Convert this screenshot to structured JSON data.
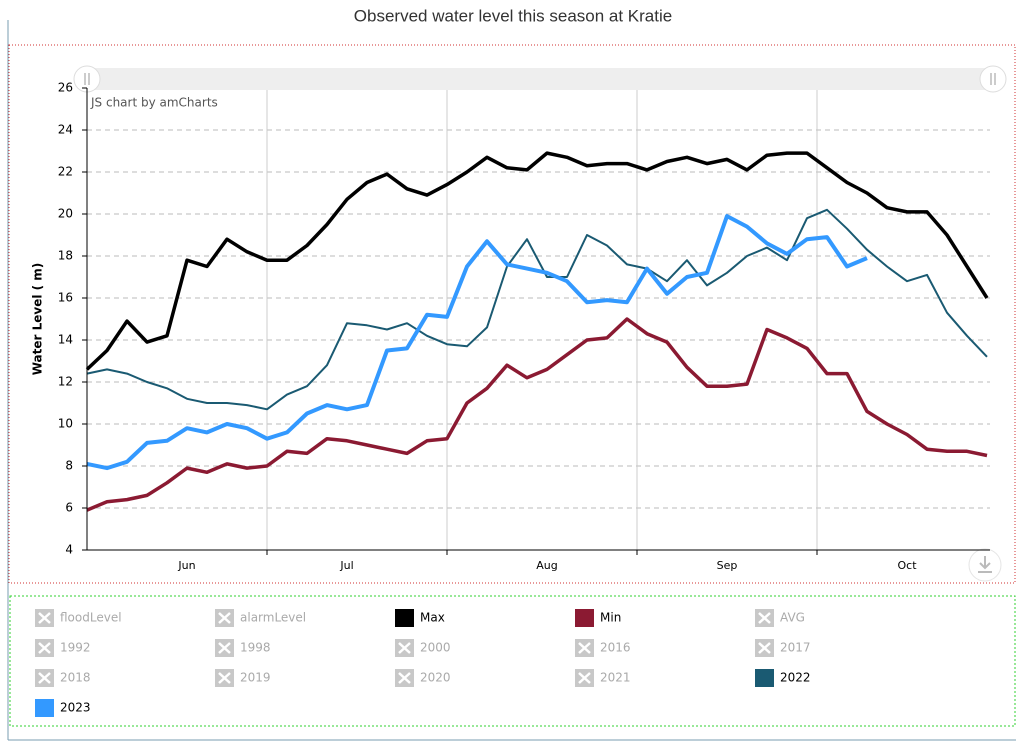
{
  "chart_data": {
    "type": "line",
    "title": "Observed water level this season at Kratie",
    "credit": "JS chart by amCharts",
    "y_label": "Water Level ( m)",
    "ylim": [
      4,
      26
    ],
    "yticks": [
      4,
      6,
      8,
      10,
      12,
      14,
      16,
      18,
      20,
      22,
      24,
      26
    ],
    "grid": true,
    "categories": [
      null,
      null,
      null,
      null,
      null,
      "Jun",
      null,
      null,
      null,
      null,
      null,
      null,
      null,
      "Jul",
      null,
      null,
      null,
      null,
      null,
      null,
      null,
      null,
      null,
      "Aug",
      null,
      null,
      null,
      null,
      null,
      null,
      null,
      null,
      "Sep",
      null,
      null,
      null,
      null,
      null,
      null,
      null,
      null,
      "Oct",
      null,
      null,
      null,
      null
    ],
    "series": [
      {
        "name": "floodLevel",
        "hidden": true
      },
      {
        "name": "alarmLevel",
        "hidden": true
      },
      {
        "name": "Max",
        "color": "#000000",
        "values": [
          12.6,
          13.5,
          14.9,
          13.9,
          14.2,
          17.8,
          17.5,
          18.8,
          18.2,
          17.8,
          17.8,
          18.5,
          19.5,
          20.7,
          21.5,
          21.9,
          21.2,
          20.9,
          21.4,
          22.0,
          22.7,
          22.2,
          22.1,
          22.9,
          22.7,
          22.3,
          22.4,
          22.4,
          22.1,
          22.5,
          22.7,
          22.4,
          22.6,
          22.1,
          22.8,
          22.9,
          22.9,
          22.2,
          21.5,
          21.0,
          20.3,
          20.1,
          20.1,
          19.0,
          17.5,
          16.0
        ]
      },
      {
        "name": "Min",
        "color": "#8b1a32",
        "values": [
          5.9,
          6.3,
          6.4,
          6.6,
          7.2,
          7.9,
          7.7,
          8.1,
          7.9,
          8.0,
          8.7,
          8.6,
          9.3,
          9.2,
          9.0,
          8.8,
          8.6,
          9.2,
          9.3,
          11.0,
          11.7,
          12.8,
          12.2,
          12.6,
          13.3,
          14.0,
          14.1,
          15.0,
          14.3,
          13.9,
          12.7,
          11.8,
          11.8,
          11.9,
          14.5,
          14.1,
          13.6,
          12.4,
          12.4,
          10.6,
          10.0,
          9.5,
          8.8,
          8.7,
          8.7,
          8.5
        ]
      },
      {
        "name": "AVG",
        "hidden": true
      },
      {
        "name": "1992",
        "hidden": true
      },
      {
        "name": "1998",
        "hidden": true
      },
      {
        "name": "2000",
        "hidden": true
      },
      {
        "name": "2016",
        "hidden": true
      },
      {
        "name": "2017",
        "hidden": true
      },
      {
        "name": "2018",
        "hidden": true
      },
      {
        "name": "2019",
        "hidden": true
      },
      {
        "name": "2020",
        "hidden": true
      },
      {
        "name": "2021",
        "hidden": true
      },
      {
        "name": "2022",
        "color": "#1a5a72",
        "values": [
          12.4,
          12.6,
          12.4,
          12.0,
          11.7,
          11.2,
          11.0,
          11.0,
          10.9,
          10.7,
          11.4,
          11.8,
          12.8,
          14.8,
          14.7,
          14.5,
          14.8,
          14.2,
          13.8,
          13.7,
          14.6,
          17.5,
          18.8,
          17.0,
          17.0,
          19.0,
          18.5,
          17.6,
          17.4,
          16.8,
          17.8,
          16.6,
          17.2,
          18.0,
          18.4,
          17.8,
          19.8,
          20.2,
          19.3,
          18.3,
          17.5,
          16.8,
          17.1,
          15.3,
          14.2,
          13.2
        ]
      },
      {
        "name": "2023",
        "color": "#3399ff",
        "values": [
          8.1,
          7.9,
          8.2,
          9.1,
          9.2,
          9.8,
          9.6,
          10.0,
          9.8,
          9.3,
          9.6,
          10.5,
          10.9,
          10.7,
          10.9,
          13.5,
          13.6,
          15.2,
          15.1,
          17.5,
          18.7,
          17.6,
          17.4,
          17.2,
          16.8,
          15.8,
          15.9,
          15.8,
          17.4,
          16.2,
          17.0,
          17.2,
          19.9,
          19.4,
          18.6,
          18.1,
          18.8,
          18.9,
          17.5,
          17.9,
          null,
          null,
          null,
          null,
          null,
          null
        ]
      }
    ]
  }
}
